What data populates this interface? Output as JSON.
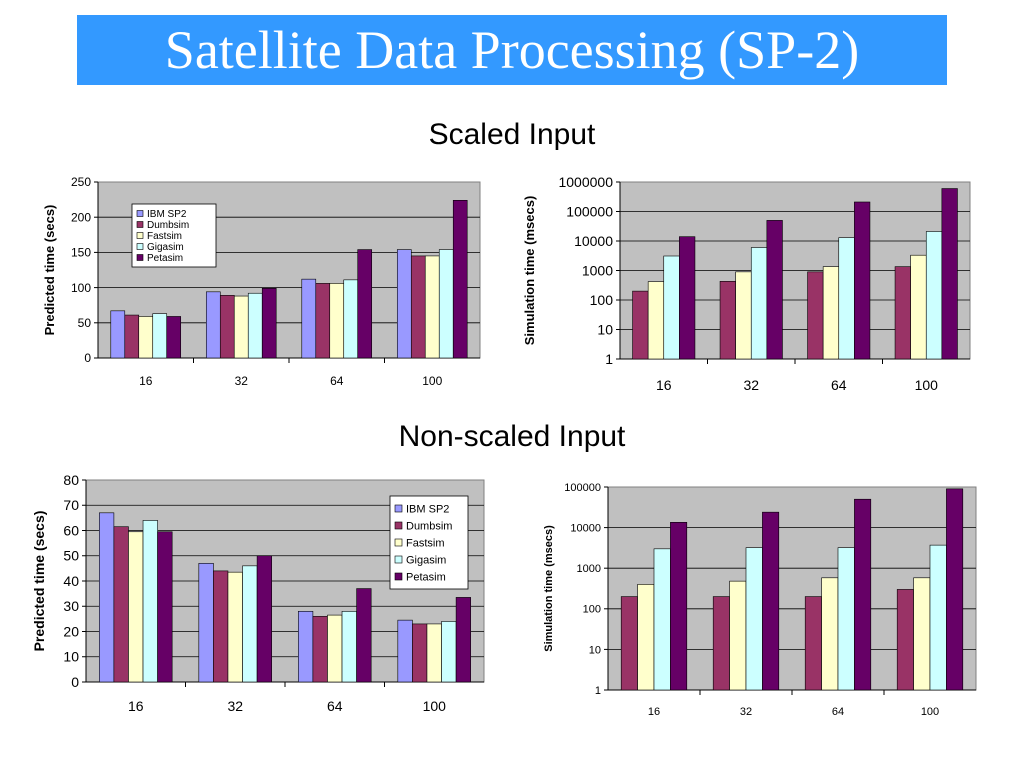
{
  "title": "Satellite Data Processing (SP-2)",
  "sections": {
    "top": "Scaled Input",
    "bottom": "Non-scaled Input"
  },
  "colors": {
    "title_bar": "#3399ff",
    "title_text": "#ffffff",
    "plot_bg": "#c0c0c0"
  },
  "chart_data": [
    {
      "type": "bar",
      "ylabel": "Predicted time (secs)",
      "categories": [
        "16",
        "32",
        "64",
        "100"
      ],
      "ylim": [
        0,
        250
      ],
      "yticks": [
        "0",
        "50",
        "100",
        "150",
        "200",
        "250"
      ],
      "legend_placement": "top-left",
      "grid": true,
      "series": [
        {
          "name": "IBM SP2",
          "color": "#9999ff",
          "values": [
            67,
            94,
            112,
            154
          ]
        },
        {
          "name": "Dumbsim",
          "color": "#993366",
          "values": [
            61,
            89,
            106,
            145
          ]
        },
        {
          "name": "Fastsim",
          "color": "#ffffcc",
          "values": [
            59,
            88,
            106,
            145
          ]
        },
        {
          "name": "Gigasim",
          "color": "#ccffff",
          "values": [
            63,
            92,
            111,
            154
          ]
        },
        {
          "name": "Petasim",
          "color": "#660066",
          "values": [
            59,
            99,
            154,
            224
          ]
        }
      ]
    },
    {
      "type": "bar",
      "ylabel": "Simulation time (msecs)",
      "categories": [
        "16",
        "32",
        "64",
        "100"
      ],
      "yscale": "log",
      "ylim": [
        1,
        1000000
      ],
      "yticks": [
        "1",
        "10",
        "100",
        "1000",
        "10000",
        "100000",
        "1000000"
      ],
      "grid": true,
      "series": [
        {
          "color": "#993366",
          "values": [
            200,
            430,
            900,
            1350
          ]
        },
        {
          "color": "#ffffcc",
          "values": [
            420,
            900,
            1350,
            3300
          ]
        },
        {
          "color": "#ccffff",
          "values": [
            3100,
            6000,
            13000,
            21000
          ]
        },
        {
          "color": "#660066",
          "values": [
            14000,
            50000,
            210000,
            600000
          ]
        }
      ]
    },
    {
      "type": "bar",
      "ylabel": "Predicted time (secs)",
      "categories": [
        "16",
        "32",
        "64",
        "100"
      ],
      "ylim": [
        0,
        80
      ],
      "yticks": [
        "0",
        "10",
        "20",
        "30",
        "40",
        "50",
        "60",
        "70",
        "80"
      ],
      "legend_placement": "top-right",
      "grid": true,
      "series": [
        {
          "name": "IBM SP2",
          "color": "#9999ff",
          "values": [
            67,
            47,
            28,
            24.5
          ]
        },
        {
          "name": "Dumbsim",
          "color": "#993366",
          "values": [
            61.5,
            44,
            26,
            23
          ]
        },
        {
          "name": "Fastsim",
          "color": "#ffffcc",
          "values": [
            59.5,
            43.5,
            26.5,
            23
          ]
        },
        {
          "name": "Gigasim",
          "color": "#ccffff",
          "values": [
            64,
            46,
            28,
            24
          ]
        },
        {
          "name": "Petasim",
          "color": "#660066",
          "values": [
            59.5,
            50,
            37,
            33.5
          ]
        }
      ]
    },
    {
      "type": "bar",
      "ylabel": "Simulation time (msecs)",
      "categories": [
        "16",
        "32",
        "64",
        "100"
      ],
      "yscale": "log",
      "ylim": [
        1,
        100000
      ],
      "yticks": [
        "1",
        "10",
        "100",
        "1000",
        "10000",
        "100000"
      ],
      "grid": true,
      "series": [
        {
          "color": "#993366",
          "values": [
            200,
            200,
            200,
            300
          ]
        },
        {
          "color": "#ffffcc",
          "values": [
            400,
            480,
            580,
            580
          ]
        },
        {
          "color": "#ccffff",
          "values": [
            3000,
            3200,
            3200,
            3700
          ]
        },
        {
          "color": "#660066",
          "values": [
            13500,
            24000,
            50000,
            90000
          ]
        }
      ]
    }
  ]
}
